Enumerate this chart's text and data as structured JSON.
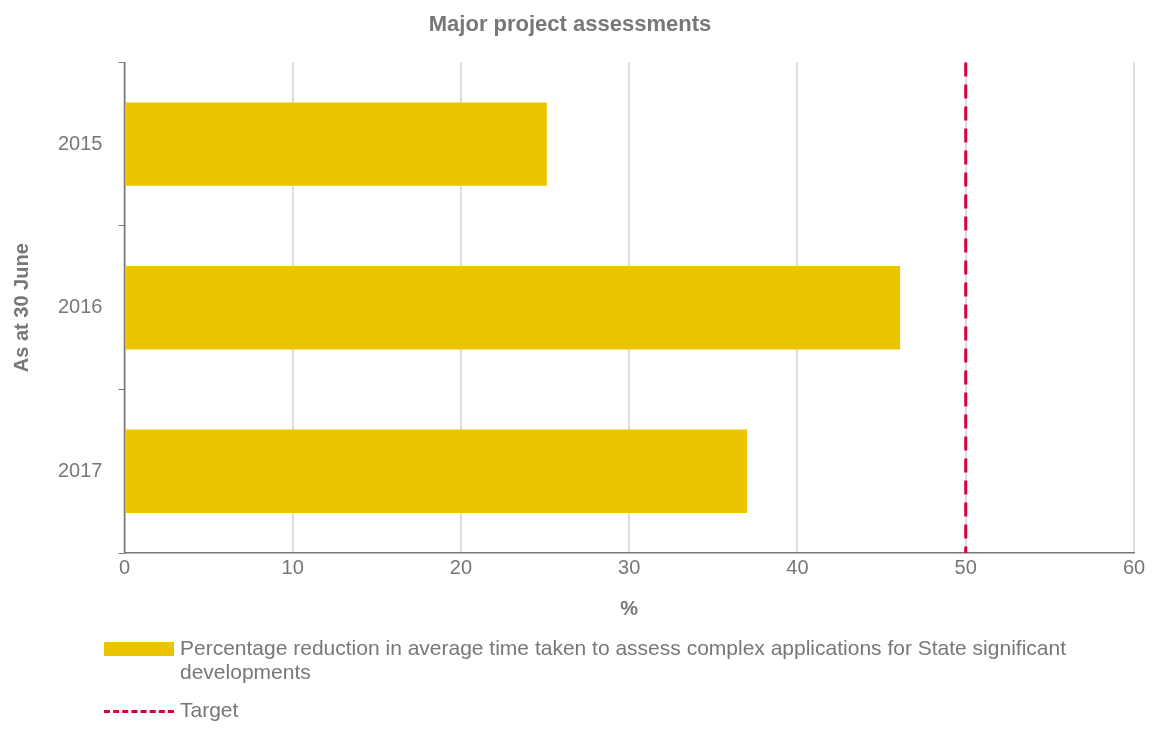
{
  "chart_data": {
    "type": "bar",
    "orientation": "horizontal",
    "title": "Major project assessments",
    "xlabel": "%",
    "ylabel": "As at 30 June",
    "categories": [
      "2015",
      "2016",
      "2017"
    ],
    "series": [
      {
        "name": "Percentage reduction in average time taken to assess complex applications for State significant developments",
        "color": "#eac500",
        "values": [
          25.1,
          46.1,
          37.0
        ]
      }
    ],
    "xlim": [
      0,
      60
    ],
    "xticks": [
      0,
      10,
      20,
      30,
      40,
      50,
      60
    ],
    "grid": "x",
    "legend": "bottom",
    "ref_lines": [
      {
        "axis": "x",
        "value": 50,
        "label": "Target",
        "color": "#d6003a",
        "line_style": "dashed"
      }
    ]
  }
}
